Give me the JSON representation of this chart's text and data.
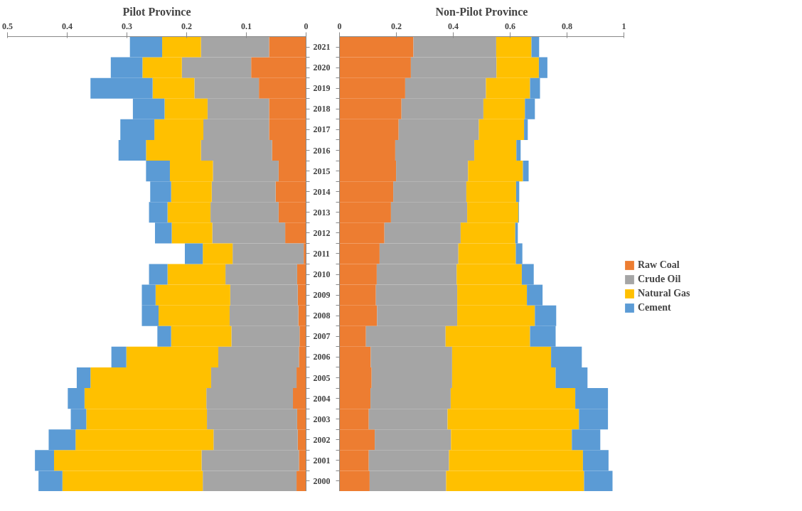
{
  "chart_data": [
    {
      "type": "bar",
      "title": "Pilot Province",
      "orientation": "horizontal",
      "stacked": true,
      "categories": [
        "2021",
        "2020",
        "2019",
        "2018",
        "2017",
        "2016",
        "2015",
        "2014",
        "2013",
        "2012",
        "2011",
        "2010",
        "2009",
        "2008",
        "2007",
        "2006",
        "2005",
        "2004",
        "2003",
        "2002",
        "2001",
        "2000"
      ],
      "xlim": [
        0.5,
        0
      ],
      "xticks": [
        0.5,
        0.4,
        0.3,
        0.2,
        0.1,
        0
      ],
      "grid": false,
      "series": [
        {
          "color": "#ed7d31",
          "values": [
            0.062,
            0.092,
            0.079,
            0.062,
            0.062,
            0.057,
            0.046,
            0.051,
            0.046,
            0.035,
            0.004,
            0.015,
            0.014,
            0.013,
            0.011,
            0.012,
            0.016,
            0.022,
            0.015,
            0.014,
            0.012,
            0.016
          ]
        },
        {
          "color": "#a5a5a5",
          "values": [
            0.114,
            0.116,
            0.108,
            0.103,
            0.11,
            0.119,
            0.11,
            0.107,
            0.114,
            0.122,
            0.119,
            0.12,
            0.113,
            0.115,
            0.114,
            0.135,
            0.143,
            0.145,
            0.151,
            0.141,
            0.163,
            0.157
          ]
        },
        {
          "color": "#ffc000",
          "values": [
            0.065,
            0.066,
            0.07,
            0.072,
            0.082,
            0.092,
            0.072,
            0.068,
            0.072,
            0.068,
            0.05,
            0.097,
            0.125,
            0.119,
            0.101,
            0.154,
            0.202,
            0.204,
            0.202,
            0.231,
            0.247,
            0.235
          ]
        },
        {
          "color": "#5b9bd5",
          "values": [
            0.054,
            0.053,
            0.104,
            0.053,
            0.057,
            0.046,
            0.04,
            0.035,
            0.031,
            0.028,
            0.03,
            0.031,
            0.023,
            0.028,
            0.023,
            0.025,
            0.023,
            0.028,
            0.026,
            0.045,
            0.032,
            0.04
          ]
        }
      ]
    },
    {
      "type": "bar",
      "title": "Non-Pilot Province",
      "orientation": "horizontal",
      "stacked": true,
      "categories": [
        "2021",
        "2020",
        "2019",
        "2018",
        "2017",
        "2016",
        "2015",
        "2014",
        "2013",
        "2012",
        "2011",
        "2010",
        "2009",
        "2008",
        "2007",
        "2006",
        "2005",
        "2004",
        "2003",
        "2002",
        "2001",
        "2000"
      ],
      "xlim": [
        0,
        1
      ],
      "xticks": [
        0,
        0.2,
        0.4,
        0.6,
        0.8,
        1
      ],
      "grid": false,
      "legend": "right",
      "tick_labels": "x",
      "series": [
        {
          "name": "Raw Coal",
          "color": "#ed7d31",
          "values": [
            0.26,
            0.251,
            0.231,
            0.218,
            0.208,
            0.196,
            0.199,
            0.189,
            0.181,
            0.158,
            0.141,
            0.131,
            0.128,
            0.132,
            0.093,
            0.11,
            0.113,
            0.109,
            0.103,
            0.124,
            0.103,
            0.106
          ]
        },
        {
          "name": "Crude Oil",
          "color": "#a5a5a5",
          "values": [
            0.291,
            0.301,
            0.284,
            0.288,
            0.282,
            0.278,
            0.253,
            0.257,
            0.268,
            0.268,
            0.277,
            0.281,
            0.286,
            0.282,
            0.28,
            0.286,
            0.283,
            0.282,
            0.277,
            0.268,
            0.282,
            0.269
          ]
        },
        {
          "name": "Natural Gas",
          "color": "#ffc000",
          "values": [
            0.124,
            0.149,
            0.155,
            0.146,
            0.159,
            0.148,
            0.193,
            0.175,
            0.18,
            0.192,
            0.202,
            0.229,
            0.245,
            0.273,
            0.297,
            0.348,
            0.364,
            0.438,
            0.462,
            0.425,
            0.471,
            0.485
          ]
        },
        {
          "name": "Cement",
          "color": "#5b9bd5",
          "values": [
            0.027,
            0.03,
            0.035,
            0.035,
            0.013,
            0.015,
            0.02,
            0.011,
            0.002,
            0.009,
            0.023,
            0.042,
            0.055,
            0.075,
            0.09,
            0.108,
            0.112,
            0.115,
            0.102,
            0.1,
            0.09,
            0.1
          ]
        }
      ]
    }
  ]
}
